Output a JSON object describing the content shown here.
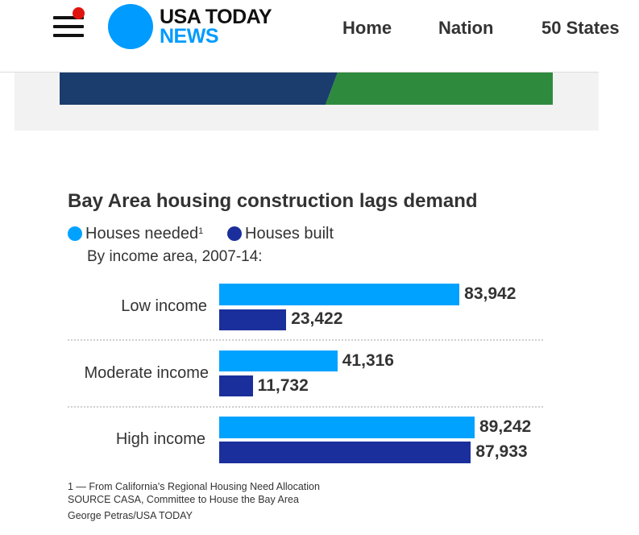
{
  "header": {
    "logo_line1": "USA TODAY",
    "logo_line2": "NEWS",
    "nav_items": [
      "Home",
      "Nation",
      "50 States"
    ]
  },
  "colors": {
    "brand_blue": "#009bff",
    "needed": "#00a2ff",
    "built": "#1a2f9c",
    "ad_navy": "#1b3d6e",
    "ad_green": "#2e8b3e"
  },
  "chart_data": {
    "type": "bar",
    "orientation": "horizontal",
    "title": "Bay Area housing construction lags demand",
    "subtitle": "By income area, 2007-14:",
    "categories": [
      "Low income",
      "Moderate income",
      "High income"
    ],
    "series": [
      {
        "name": "Houses needed",
        "superscript": "1",
        "values": [
          83942,
          41316,
          89242
        ]
      },
      {
        "name": "Houses built",
        "values": [
          23422,
          11732,
          87933
        ]
      }
    ],
    "value_labels": {
      "needed": [
        "83,942",
        "41,316",
        "89,242"
      ],
      "built": [
        "23,422",
        "11,732",
        "87,933"
      ]
    },
    "xlim": [
      0,
      96000
    ],
    "grid": false,
    "legend_position": "top-left"
  },
  "footnotes": {
    "note": "1 — From California's Regional Housing Need Allocation",
    "source": "SOURCE CASA, Committee to House the Bay Area",
    "credit": "George Petras/USA TODAY"
  }
}
